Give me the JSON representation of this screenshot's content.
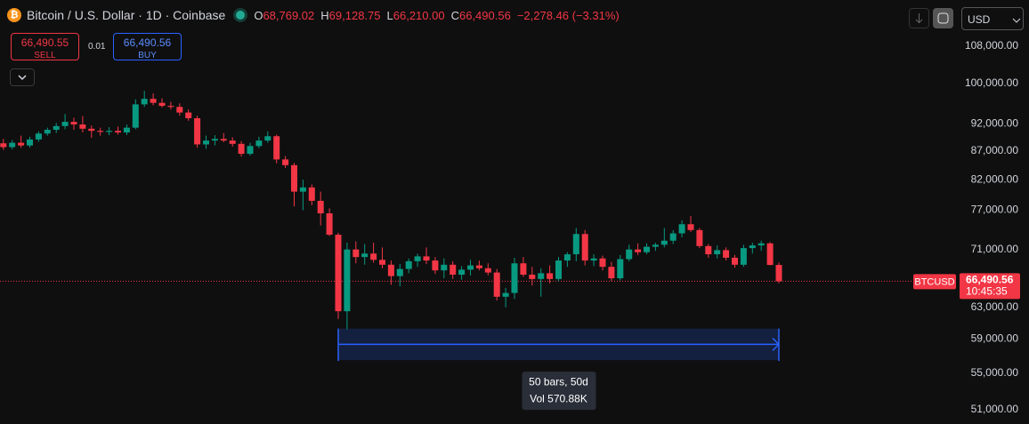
{
  "header": {
    "symbol": "Bitcoin / U.S. Dollar · 1D · Coinbase",
    "ohlc": [
      {
        "key": "O",
        "value": "68,769.02"
      },
      {
        "key": "H",
        "value": "69,128.75"
      },
      {
        "key": "L",
        "value": "66,210.00"
      },
      {
        "key": "C",
        "value": "66,490.56"
      }
    ],
    "change": "−2,278.46 (−3.31%)"
  },
  "trade": {
    "sell_price": "66,490.55",
    "sell": "SELL",
    "quantity": "0.01",
    "buy_price": "66,490.56",
    "buy": "BUY"
  },
  "currency": "USD",
  "chart_data": {
    "type": "candlestick",
    "log_scale": true,
    "grid": false,
    "up_color": "#089981",
    "down_color": "#f23645",
    "ylim": [
      49520,
      118830
    ],
    "yticks": [
      {
        "value": 108000,
        "label": "108,000.00"
      },
      {
        "value": 100000,
        "label": "100,000.00"
      },
      {
        "value": 92000,
        "label": "92,000.00"
      },
      {
        "value": 87000,
        "label": "87,000.00"
      },
      {
        "value": 82000,
        "label": "82,000.00"
      },
      {
        "value": 77000,
        "label": "77,000.00"
      },
      {
        "value": 71000,
        "label": "71,000.00"
      },
      {
        "value": 63000,
        "label": "63,000.00"
      },
      {
        "value": 59000,
        "label": "59,000.00"
      },
      {
        "value": 55000,
        "label": "55,000.00"
      },
      {
        "value": 51000,
        "label": "51,000.00"
      }
    ],
    "open": [
      88400,
      87700,
      88500,
      88000,
      89100,
      90200,
      90900,
      91600,
      92400,
      91900,
      91100,
      90700,
      90500,
      90700,
      90400,
      91300,
      95800,
      96900,
      96100,
      95500,
      95300,
      94200,
      93100,
      88200,
      88900,
      89200,
      88900,
      88300,
      86500,
      87900,
      88900,
      89700,
      85500,
      84500,
      80000,
      80700,
      78500,
      76500,
      73200,
      62500,
      71000,
      69900,
      70400,
      69500,
      68800,
      67200,
      68200,
      69300,
      70000,
      69400,
      68000,
      68800,
      67400,
      68100,
      68700,
      68300,
      67700,
      64400,
      64900,
      69000,
      67400,
      66800,
      67600,
      66800,
      69400,
      70300,
      73300,
      69400,
      69700,
      68500,
      66900,
      69600,
      71000,
      70600,
      71400,
      71700,
      72300,
      73400,
      74800,
      73900,
      71500,
      70300,
      70900,
      69800,
      68800,
      71200,
      71600,
      71900,
      68769.02
    ],
    "high": [
      89200,
      89000,
      89800,
      89600,
      90600,
      91300,
      92200,
      93900,
      93200,
      93500,
      91700,
      91300,
      91400,
      91500,
      91900,
      96800,
      98500,
      98000,
      97000,
      96300,
      96000,
      94800,
      93600,
      89800,
      89900,
      90300,
      89500,
      88800,
      88500,
      89600,
      90600,
      90000,
      86100,
      84900,
      82000,
      81200,
      80000,
      77300,
      73500,
      72000,
      72200,
      71800,
      72000,
      71300,
      69400,
      68900,
      69700,
      70400,
      71300,
      69900,
      69700,
      69300,
      68600,
      69500,
      69400,
      69000,
      68200,
      65600,
      69800,
      69900,
      68500,
      68300,
      68700,
      69900,
      70600,
      74200,
      73900,
      70300,
      70100,
      69200,
      70200,
      71700,
      71900,
      71900,
      72000,
      74200,
      73900,
      75400,
      76100,
      74200,
      71800,
      71600,
      71300,
      70200,
      71700,
      72000,
      72300,
      72100,
      69128.75
    ],
    "low": [
      87200,
      87300,
      87600,
      87600,
      88700,
      89800,
      90300,
      91000,
      90900,
      90400,
      89400,
      89800,
      89900,
      90000,
      89900,
      91000,
      95300,
      95600,
      95200,
      94800,
      93600,
      92600,
      87600,
      87400,
      88000,
      88600,
      87800,
      86000,
      86200,
      87500,
      88500,
      84800,
      84000,
      77600,
      77000,
      77800,
      74600,
      73000,
      61500,
      60200,
      69000,
      68800,
      69100,
      68300,
      66000,
      65800,
      67600,
      68500,
      68900,
      67500,
      66900,
      66800,
      66700,
      67300,
      68000,
      67300,
      63900,
      63000,
      64100,
      67100,
      65900,
      64400,
      66200,
      66500,
      68500,
      69300,
      68700,
      68600,
      68000,
      66500,
      66600,
      69300,
      70200,
      70300,
      70800,
      71300,
      71800,
      72800,
      73600,
      71200,
      69800,
      69700,
      69400,
      68400,
      68500,
      70400,
      70800,
      68700,
      66210
    ],
    "close": [
      87700,
      88500,
      88000,
      89100,
      90200,
      90900,
      91600,
      92400,
      91900,
      91100,
      90700,
      90500,
      90700,
      90400,
      91300,
      95800,
      96900,
      96100,
      95500,
      95300,
      94200,
      93100,
      88200,
      88900,
      89200,
      88900,
      88300,
      86500,
      87900,
      88900,
      89700,
      85500,
      84500,
      80000,
      80700,
      78500,
      76500,
      73200,
      62500,
      71000,
      69900,
      70400,
      69500,
      68800,
      67200,
      68200,
      69300,
      70000,
      69400,
      68000,
      68800,
      67400,
      68100,
      68700,
      68300,
      67700,
      64400,
      64900,
      69000,
      67400,
      66800,
      67600,
      66800,
      69400,
      70300,
      73300,
      69400,
      69700,
      68500,
      66900,
      69600,
      71000,
      70600,
      71400,
      71700,
      72300,
      73400,
      74800,
      73900,
      71500,
      70300,
      70900,
      69800,
      68800,
      71200,
      71600,
      71900,
      68769.02,
      66490.56
    ],
    "price_line": {
      "value": 66490.56,
      "label": "66,490.56",
      "symbol": "BTCUSD",
      "countdown": "10:45:35"
    },
    "measure": {
      "start_bar": 38,
      "end_bar": 88,
      "ylim": [
        56500,
        60300
      ],
      "label": "50 bars, 50d",
      "volume": "Vol 570.88K"
    }
  }
}
